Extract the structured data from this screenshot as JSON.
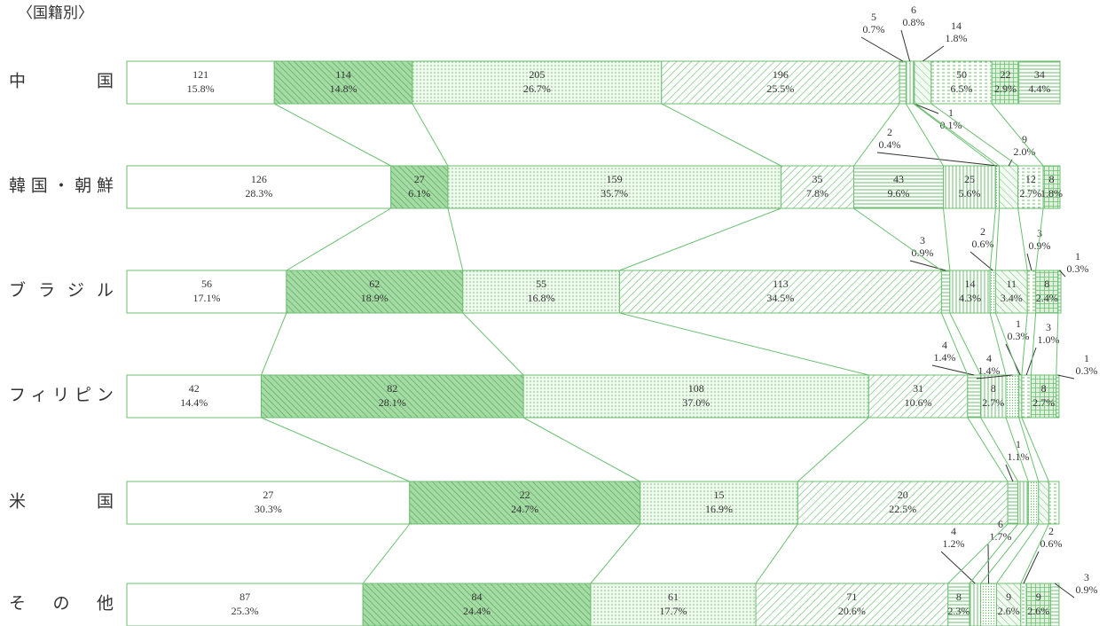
{
  "chart_data": {
    "type": "bar",
    "stacked": "percent",
    "orientation": "horizontal",
    "title": "〈国籍別〉",
    "color": "#6cbf72",
    "rows": [
      {
        "label": "中国",
        "counts": [
          121,
          114,
          205,
          196,
          5,
          6,
          1,
          14,
          50,
          22,
          34
        ],
        "percents": [
          15.8,
          14.8,
          26.7,
          25.5,
          0.7,
          0.8,
          0.1,
          1.8,
          6.5,
          2.9,
          4.4
        ],
        "percent_labels": [
          "15.8%",
          "14.8%",
          "26.7%",
          "25.5%",
          "0.7%",
          "0.8%",
          "0.1%",
          "1.8%",
          "6.5%",
          "2.9%",
          "4.4%"
        ]
      },
      {
        "label": "韓国・朝鮮",
        "counts": [
          126,
          27,
          159,
          35,
          43,
          25,
          2,
          9,
          12,
          8
        ],
        "percents": [
          28.3,
          6.1,
          35.7,
          7.8,
          9.6,
          5.6,
          0.4,
          2.0,
          2.7,
          1.8
        ],
        "percent_labels": [
          "28.3%",
          "6.1%",
          "35.7%",
          "7.8%",
          "9.6%",
          "5.6%",
          "0.4%",
          "2.0%",
          "2.7%",
          "1.8%"
        ]
      },
      {
        "label": "ブラジル",
        "counts": [
          56,
          62,
          55,
          113,
          3,
          14,
          2,
          11,
          3,
          8,
          1
        ],
        "percents": [
          17.1,
          18.9,
          16.8,
          34.5,
          0.9,
          4.3,
          0.6,
          3.4,
          0.9,
          2.4,
          0.3
        ],
        "percent_labels": [
          "17.1%",
          "18.9%",
          "16.8%",
          "34.5%",
          "0.9%",
          "4.3%",
          "0.6%",
          "3.4%",
          "0.9%",
          "2.4%",
          "0.3%"
        ]
      },
      {
        "label": "フィリピン",
        "counts": [
          42,
          82,
          108,
          31,
          4,
          8,
          4,
          1,
          3,
          8,
          1
        ],
        "percents": [
          14.4,
          28.1,
          37.0,
          10.6,
          1.4,
          2.7,
          1.4,
          0.3,
          1.0,
          2.7,
          0.3
        ],
        "percent_labels": [
          "14.4%",
          "28.1%",
          "37.0%",
          "10.6%",
          "1.4%",
          "2.7%",
          "1.4%",
          "0.3%",
          "1.0%",
          "2.7%",
          "0.3%"
        ]
      },
      {
        "label": "米国",
        "counts": [
          27,
          22,
          15,
          20,
          1,
          1,
          1,
          1,
          1
        ],
        "percents": [
          30.3,
          24.7,
          16.9,
          22.5,
          1.1,
          1.1,
          1.1,
          1.1,
          1.1
        ],
        "percent_labels": [
          "30.3%",
          "24.7%",
          "16.9%",
          "22.5%",
          "1.1%",
          null,
          null,
          null,
          null
        ]
      },
      {
        "label": "その他",
        "counts": [
          87,
          84,
          61,
          71,
          8,
          4,
          6,
          9,
          2,
          9,
          3
        ],
        "percents": [
          25.3,
          24.4,
          17.7,
          20.6,
          2.3,
          1.2,
          1.7,
          2.6,
          0.6,
          2.6,
          0.9
        ],
        "percent_labels": [
          "25.3%",
          "24.4%",
          "17.7%",
          "20.6%",
          "2.3%",
          "1.2%",
          "1.7%",
          "2.6%",
          "0.6%",
          "2.6%",
          "0.9%"
        ]
      }
    ]
  }
}
